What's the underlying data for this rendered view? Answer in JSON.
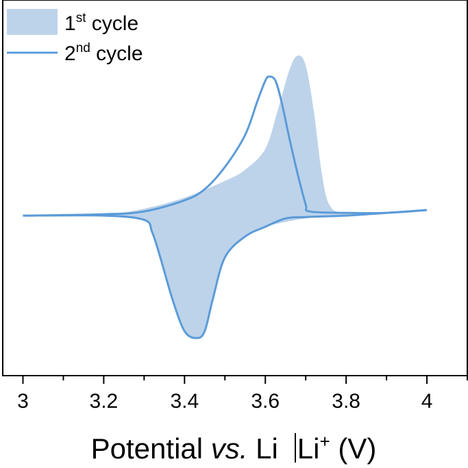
{
  "chart_data": {
    "type": "line",
    "title": "",
    "xlabel_parts": {
      "pre": "Potential ",
      "italic": "vs.",
      "mid": " Li",
      "post": "Li",
      "sup": "+",
      "unit": " (V)"
    },
    "ylabel": "",
    "xlim": [
      2.95,
      4.1
    ],
    "ylim": [
      -1.15,
      1.55
    ],
    "x_ticks": [
      3,
      3.2,
      3.4,
      3.6,
      3.8,
      4
    ],
    "x_tick_labels": [
      "3",
      "3.2",
      "3.4",
      "3.6",
      "3.8",
      "4"
    ],
    "grid": false,
    "legend_position": "top-left",
    "legend": [
      {
        "num": "1",
        "sup": "st",
        "text": " cycle"
      },
      {
        "num": "2",
        "sup": "nd",
        "text": " cycle"
      }
    ],
    "series": [
      {
        "name": "1st cycle",
        "style": "filled-area",
        "color": "#bdd3ea",
        "anodic": [
          [
            3.0,
            0.0
          ],
          [
            3.2,
            0.01
          ],
          [
            3.3,
            0.05
          ],
          [
            3.4,
            0.13
          ],
          [
            3.5,
            0.25
          ],
          [
            3.55,
            0.33
          ],
          [
            3.6,
            0.48
          ],
          [
            3.63,
            0.75
          ],
          [
            3.66,
            1.05
          ],
          [
            3.68,
            1.15
          ],
          [
            3.7,
            1.08
          ],
          [
            3.72,
            0.75
          ],
          [
            3.74,
            0.3
          ],
          [
            3.76,
            0.07
          ],
          [
            3.8,
            0.02
          ],
          [
            3.9,
            0.02
          ],
          [
            4.0,
            0.04
          ]
        ],
        "cathodic": [
          [
            4.0,
            0.04
          ],
          [
            3.9,
            0.02
          ],
          [
            3.8,
            0.0
          ],
          [
            3.7,
            -0.02
          ],
          [
            3.6,
            -0.08
          ],
          [
            3.55,
            -0.15
          ],
          [
            3.5,
            -0.3
          ],
          [
            3.47,
            -0.6
          ],
          [
            3.45,
            -0.83
          ],
          [
            3.43,
            -0.88
          ],
          [
            3.4,
            -0.83
          ],
          [
            3.37,
            -0.6
          ],
          [
            3.34,
            -0.3
          ],
          [
            3.32,
            -0.12
          ],
          [
            3.3,
            -0.03
          ],
          [
            3.2,
            0.0
          ],
          [
            3.0,
            0.0
          ]
        ]
      },
      {
        "name": "2nd cycle",
        "style": "line",
        "color": "#5b9bd8",
        "anodic": [
          [
            3.0,
            0.0
          ],
          [
            3.2,
            0.01
          ],
          [
            3.3,
            0.03
          ],
          [
            3.4,
            0.11
          ],
          [
            3.45,
            0.19
          ],
          [
            3.5,
            0.35
          ],
          [
            3.55,
            0.58
          ],
          [
            3.58,
            0.82
          ],
          [
            3.6,
            0.97
          ],
          [
            3.61,
            1.0
          ],
          [
            3.625,
            0.97
          ],
          [
            3.64,
            0.82
          ],
          [
            3.66,
            0.55
          ],
          [
            3.68,
            0.3
          ],
          [
            3.7,
            0.08
          ],
          [
            3.71,
            0.03
          ],
          [
            3.8,
            0.02
          ],
          [
            3.9,
            0.02
          ],
          [
            4.0,
            0.04
          ]
        ],
        "cathodic": [
          [
            4.0,
            0.04
          ],
          [
            3.9,
            0.02
          ],
          [
            3.8,
            0.0
          ],
          [
            3.7,
            -0.01
          ],
          [
            3.65,
            -0.02
          ],
          [
            3.6,
            -0.08
          ],
          [
            3.55,
            -0.15
          ],
          [
            3.5,
            -0.3
          ],
          [
            3.47,
            -0.6
          ],
          [
            3.45,
            -0.83
          ],
          [
            3.43,
            -0.88
          ],
          [
            3.4,
            -0.83
          ],
          [
            3.37,
            -0.6
          ],
          [
            3.34,
            -0.3
          ],
          [
            3.32,
            -0.12
          ],
          [
            3.3,
            -0.03
          ],
          [
            3.2,
            0.0
          ],
          [
            3.0,
            0.0
          ]
        ]
      }
    ]
  }
}
